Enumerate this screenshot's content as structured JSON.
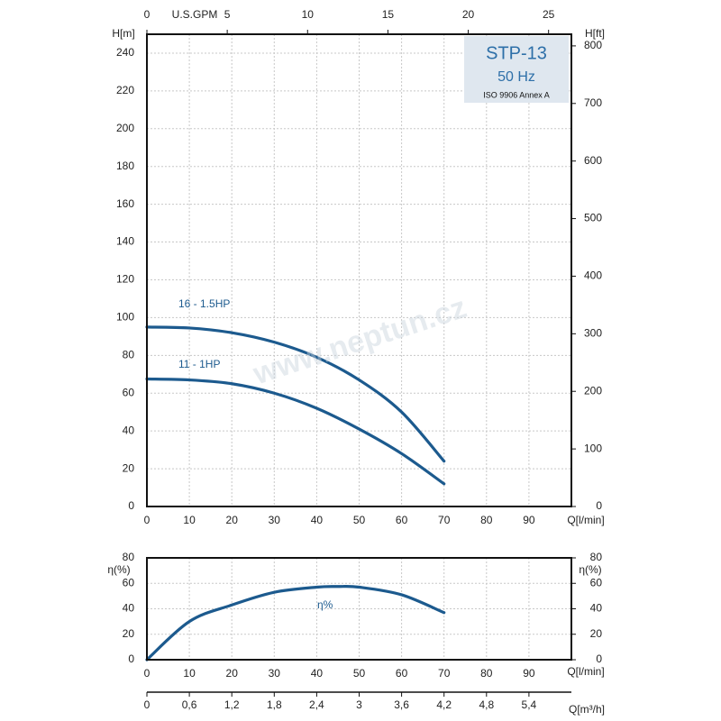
{
  "chart_data": [
    {
      "type": "line",
      "title": "STP-13",
      "subtitle": "50 Hz",
      "note": "ISO 9906 Annex A",
      "watermark": "www.neptun.cz",
      "ylabel": "H[m]",
      "y2label": "H[ft]",
      "xlabel": "Q[l/min]",
      "x2label": "U.S.GPM",
      "x": [
        0,
        10,
        20,
        30,
        40,
        50,
        60,
        70
      ],
      "series": [
        {
          "name": "16 - 1.5HP",
          "color": "#1c5a8e",
          "values": [
            95,
            94.5,
            92,
            87,
            79,
            67,
            50,
            24
          ]
        },
        {
          "name": "11 - 1HP",
          "color": "#1c5a8e",
          "values": [
            67.5,
            67,
            65,
            60,
            52,
            41,
            28,
            12
          ]
        }
      ],
      "xlim": [
        0,
        100
      ],
      "xticks": [
        0,
        10,
        20,
        30,
        40,
        50,
        60,
        70,
        80,
        90
      ],
      "x2lim": [
        0,
        26.42
      ],
      "x2ticks": [
        0,
        5,
        10,
        15,
        20,
        25
      ],
      "ylim": [
        0,
        250
      ],
      "yticks": [
        0,
        20,
        40,
        60,
        80,
        100,
        120,
        140,
        160,
        180,
        200,
        220,
        240
      ],
      "y2lim": [
        0,
        820.2
      ],
      "y2ticks": [
        0,
        100,
        200,
        300,
        400,
        500,
        600,
        700,
        800
      ],
      "grid": true
    },
    {
      "type": "line",
      "ylabel": "η(%)",
      "y2label": "η(%)",
      "xlabel": "Q[l/min]",
      "x2label": "Q[m³/h]",
      "x": [
        0,
        10,
        20,
        30,
        40,
        45,
        50,
        60,
        70
      ],
      "series": [
        {
          "name": "η%",
          "color": "#1c5a8e",
          "values": [
            0,
            30,
            43,
            53,
            57,
            57.5,
            57,
            51,
            37
          ]
        }
      ],
      "xlim": [
        0,
        100
      ],
      "xticks": [
        0,
        10,
        20,
        30,
        40,
        50,
        60,
        70,
        80,
        90
      ],
      "x2lim": [
        0,
        6
      ],
      "x2ticks": [
        0,
        {
          "value": 0.6,
          "label": "0,6"
        },
        {
          "value": 1.2,
          "label": "1,2"
        },
        {
          "value": 1.8,
          "label": "1,8"
        },
        {
          "value": 2.4,
          "label": "2,4"
        },
        3,
        {
          "value": 3.6,
          "label": "3,6"
        },
        {
          "value": 4.2,
          "label": "4,2"
        },
        {
          "value": 4.8,
          "label": "4,8"
        },
        {
          "value": 5.4,
          "label": "5,4"
        }
      ],
      "ylim": [
        0,
        80
      ],
      "yticks": [
        0,
        20,
        40,
        60,
        80
      ],
      "y2lim": [
        0,
        80
      ],
      "y2ticks": [
        0,
        20,
        40,
        60,
        80
      ],
      "grid": true
    }
  ]
}
